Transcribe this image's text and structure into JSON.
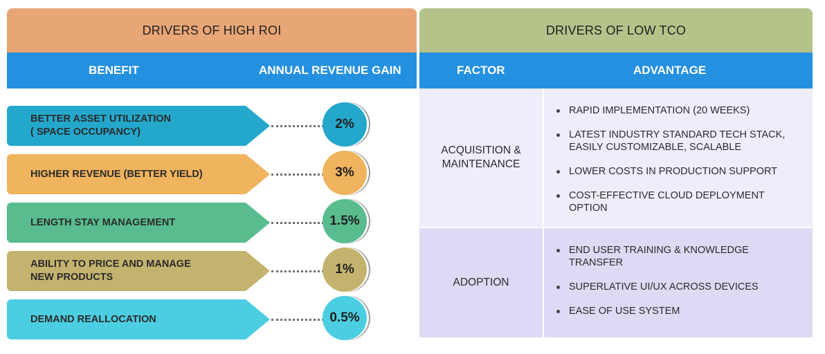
{
  "roi": {
    "title": "DRIVERS OF HIGH ROI",
    "col_benefit": "BENEFIT",
    "col_gain": "ANNUAL REVENUE GAIN",
    "rows": [
      {
        "benefit_line1": "BETTER ASSET UTILIZATION",
        "benefit_line2": "( SPACE OCCUPANCY)",
        "gain": "2%",
        "color": "#23a8cc"
      },
      {
        "benefit_line1": "HIGHER REVENUE (BETTER YIELD)",
        "benefit_line2": "",
        "gain": "3%",
        "color": "#f0b35e"
      },
      {
        "benefit_line1": "LENGTH STAY MANAGEMENT",
        "benefit_line2": "",
        "gain": "1.5%",
        "color": "#59bc8f"
      },
      {
        "benefit_line1": "ABILITY TO PRICE AND MANAGE",
        "benefit_line2": "NEW PRODUCTS",
        "gain": "1%",
        "color": "#c4b36f"
      },
      {
        "benefit_line1": "DEMAND REALLOCATION",
        "benefit_line2": "",
        "gain": "0.5%",
        "color": "#4ccee2"
      }
    ]
  },
  "tco": {
    "title": "DRIVERS OF LOW TCO",
    "col_factor": "FACTOR",
    "col_advantage": "ADVANTAGE",
    "sections": [
      {
        "factor_line1": "ACQUISITION &",
        "factor_line2": "MAINTENANCE",
        "advantages": [
          {
            "line1": "RAPID IMPLEMENTATION (20 WEEKS)",
            "line2": ""
          },
          {
            "line1": "LATEST INDUSTRY STANDARD TECH STACK,",
            "line2": "EASILY CUSTOMIZABLE, SCALABLE"
          },
          {
            "line1": "LOWER COSTS IN PRODUCTION SUPPORT",
            "line2": ""
          },
          {
            "line1": "COST-EFFECTIVE CLOUD DEPLOYMENT",
            "line2": "OPTION"
          }
        ]
      },
      {
        "factor_line1": "ADOPTION",
        "factor_line2": "",
        "advantages": [
          {
            "line1": "END USER TRAINING & KNOWLEDGE",
            "line2": "TRANSFER"
          },
          {
            "line1": "SUPERLATIVE UI/UX ACROSS DEVICES",
            "line2": ""
          },
          {
            "line1": "EASE OF USE SYSTEM",
            "line2": ""
          }
        ]
      }
    ]
  },
  "colors": {
    "roi_header": "#e8a676",
    "tco_header": "#b3c38a",
    "column_bar": "#2490e0",
    "tco_section1": "#eeeefa",
    "tco_section2": "#dcdaf4"
  }
}
